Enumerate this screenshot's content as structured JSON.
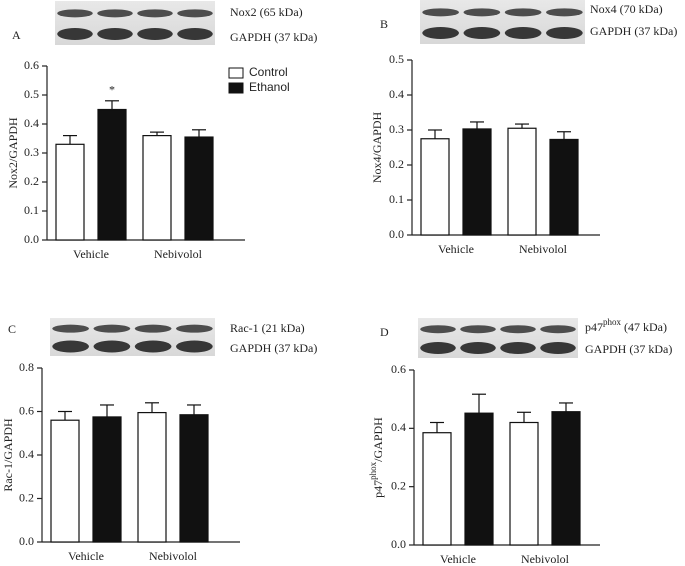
{
  "chart_data": [
    {
      "type": "bar",
      "panel": "A",
      "blots": [
        [
          "Nox2 (65 kDa)"
        ],
        [
          "GAPDH (37 kDa)"
        ]
      ],
      "ylabel": [
        "Nox2/GAPDH"
      ],
      "categories": [
        "Vehicle",
        "Nebivolol"
      ],
      "series": [
        {
          "name": "Control",
          "color": "#ffffff",
          "values": [
            0.33,
            0.36
          ],
          "errors": [
            0.03,
            0.012
          ]
        },
        {
          "name": "Ethanol",
          "color": "#111111",
          "values": [
            0.45,
            0.355
          ],
          "errors": [
            0.03,
            0.025
          ]
        }
      ],
      "annotations": [
        "*"
      ],
      "legend": true,
      "ylim": [
        0,
        0.6
      ],
      "yticks": [
        {
          "value": 0,
          "label": "0.0"
        },
        {
          "value": 0.1,
          "label": "0.1"
        },
        {
          "value": 0.2,
          "label": "0.2"
        },
        {
          "value": 0.3,
          "label": "0.3"
        },
        {
          "value": 0.4,
          "label": "0.4"
        },
        {
          "value": 0.5,
          "label": "0.5"
        },
        {
          "value": 0.6,
          "label": "0.6"
        }
      ]
    },
    {
      "type": "bar",
      "panel": "B",
      "blots": [
        [
          "Nox4 (70 kDa)"
        ],
        [
          "GAPDH (37 kDa)"
        ]
      ],
      "ylabel": [
        "Nox4/GAPDH"
      ],
      "categories": [
        "Vehicle",
        "Nebivolol"
      ],
      "series": [
        {
          "color": "#ffffff",
          "values": [
            0.275,
            0.305
          ],
          "errors": [
            0.025,
            0.012
          ]
        },
        {
          "color": "#111111",
          "values": [
            0.303,
            0.273
          ],
          "errors": [
            0.02,
            0.022
          ]
        }
      ],
      "ylim": [
        0,
        0.5
      ],
      "yticks": [
        {
          "value": 0,
          "label": "0.0"
        },
        {
          "value": 0.1,
          "label": "0.1"
        },
        {
          "value": 0.2,
          "label": "0.2"
        },
        {
          "value": 0.3,
          "label": "0.3"
        },
        {
          "value": 0.4,
          "label": "0.4"
        },
        {
          "value": 0.5,
          "label": "0.5"
        }
      ]
    },
    {
      "type": "bar",
      "panel": "C",
      "blots": [
        [
          "Rac-1 (21 kDa)"
        ],
        [
          "GAPDH (37 kDa)"
        ]
      ],
      "ylabel": [
        "Rac-1/GAPDH"
      ],
      "categories": [
        "Vehicle",
        "Nebivolol"
      ],
      "series": [
        {
          "color": "#ffffff",
          "values": [
            0.56,
            0.595
          ],
          "errors": [
            0.04,
            0.045
          ]
        },
        {
          "color": "#111111",
          "values": [
            0.575,
            0.585
          ],
          "errors": [
            0.055,
            0.045
          ]
        }
      ],
      "ylim": [
        0,
        0.8
      ],
      "yticks": [
        {
          "value": 0,
          "label": "0.0"
        },
        {
          "value": 0.2,
          "label": "0.2"
        },
        {
          "value": 0.4,
          "label": "0.4"
        },
        {
          "value": 0.6,
          "label": "0.6"
        },
        {
          "value": 0.8,
          "label": "0.8"
        }
      ]
    },
    {
      "type": "bar",
      "panel": "D",
      "blots": [
        [
          "p47",
          "phox",
          " (47 kDa)"
        ],
        [
          "GAPDH (37 kDa)"
        ]
      ],
      "ylabel": [
        "p47",
        "phox",
        "/GAPDH"
      ],
      "categories": [
        "Vehicle",
        "Nebivolol"
      ],
      "series": [
        {
          "color": "#ffffff",
          "values": [
            0.385,
            0.42
          ],
          "errors": [
            0.035,
            0.035
          ]
        },
        {
          "color": "#111111",
          "values": [
            0.452,
            0.457
          ],
          "errors": [
            0.065,
            0.03
          ]
        }
      ],
      "ylim": [
        0,
        0.6
      ],
      "yticks": [
        {
          "value": 0,
          "label": "0.0"
        },
        {
          "value": 0.2,
          "label": "0.2"
        },
        {
          "value": 0.4,
          "label": "0.4"
        },
        {
          "value": 0.6,
          "label": "0.6"
        }
      ]
    }
  ]
}
